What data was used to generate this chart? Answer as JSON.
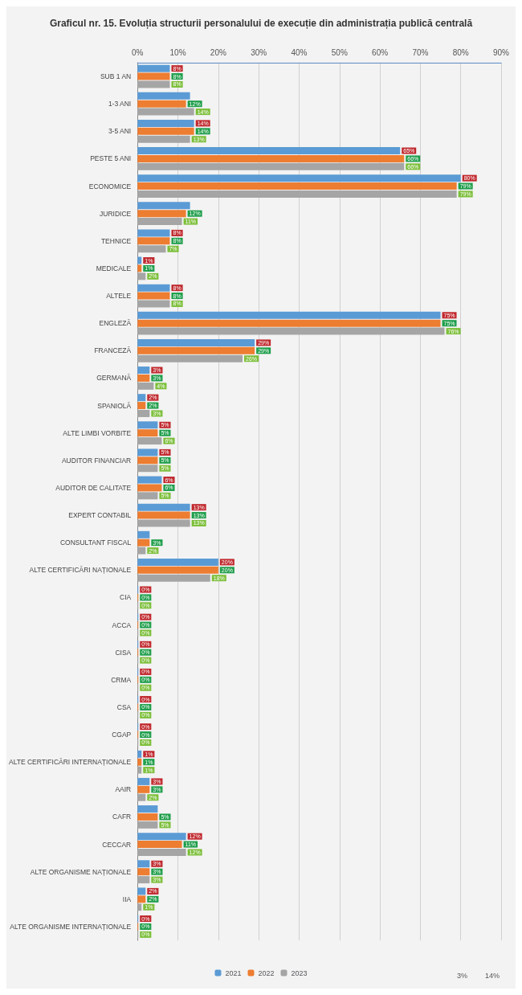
{
  "chart_data": {
    "type": "bar",
    "orientation": "horizontal",
    "title": "Graficul nr. 15. Evoluția structurii personalului de execuție din administrația publică centrală",
    "categories": [
      "SUB 1 AN",
      "1-3 ANI",
      "3-5 ANI",
      "PESTE 5 ANI",
      "ECONOMICE",
      "JURIDICE",
      "TEHNICE",
      "MEDICALE",
      "ALTELE",
      "ENGLEZĂ",
      "FRANCEZĂ",
      "GERMANĂ",
      "SPANIOLĂ",
      "ALTE LIMBI VORBITE",
      "AUDITOR FINANCIAR",
      "AUDITOR DE CALITATE",
      "EXPERT CONTABIL",
      "CONSULTANT FISCAL",
      "ALTE CERTIFICĂRI NAȚIONALE",
      "CIA",
      "ACCA",
      "CISA",
      "CRMA",
      "CSA",
      "CGAP",
      "ALTE CERTIFICĂRI INTERNAȚIONALE",
      "AAIR",
      "CAFR",
      "CECCAR",
      "ALTE ORGANISME NAȚIONALE",
      "IIA",
      "ALTE ORGANISME INTERNAȚIONALE"
    ],
    "series": [
      {
        "name": "2021",
        "color": "#5b9bd5",
        "values": [
          8,
          13,
          14,
          65,
          80,
          13,
          8,
          1,
          8,
          75,
          29,
          3,
          2,
          5,
          5,
          6,
          13,
          3,
          20,
          0,
          0,
          0,
          0,
          0,
          0,
          1,
          3,
          5,
          12,
          3,
          2,
          0
        ],
        "value_labels": [
          "8%",
          null,
          "14%",
          "65%",
          "80%",
          null,
          "8%",
          "1%",
          "8%",
          "75%",
          "29%",
          "3%",
          "2%",
          "5%",
          "5%",
          "6%",
          "13%",
          null,
          "20%",
          "0%",
          "0%",
          "0%",
          "0%",
          "0%",
          "0%",
          "1%",
          "3%",
          null,
          "12%",
          "3%",
          "2%",
          "0%"
        ]
      },
      {
        "name": "2022",
        "color": "#ed7d31",
        "values": [
          8,
          12,
          14,
          66,
          79,
          12,
          8,
          1,
          8,
          75,
          29,
          3,
          2,
          5,
          5,
          6,
          13,
          3,
          20,
          0,
          0,
          0,
          0,
          0,
          0,
          1,
          3,
          5,
          11,
          3,
          2,
          0
        ],
        "value_labels": [
          "8%",
          "12%",
          "14%",
          "66%",
          "79%",
          "12%",
          "8%",
          "1%",
          "8%",
          "75%",
          "29%",
          "3%",
          "2%",
          "5%",
          "5%",
          "6%",
          "13%",
          "3%",
          "20%",
          "0%",
          "0%",
          "0%",
          "0%",
          "0%",
          "0%",
          "1%",
          "3%",
          "5%",
          "11%",
          "3%",
          "2%",
          "0%"
        ]
      },
      {
        "name": "2023",
        "color": "#a5a5a5",
        "values": [
          8,
          14,
          13,
          66,
          79,
          11,
          7,
          2,
          8,
          76,
          26,
          4,
          3,
          6,
          5,
          5,
          13,
          2,
          18,
          0,
          0,
          0,
          0,
          0,
          0,
          1,
          2,
          5,
          12,
          3,
          1,
          0
        ],
        "value_labels": [
          "8%",
          "14%",
          "13%",
          "66%",
          "79%",
          "11%",
          "7%",
          "2%",
          "8%",
          "76%",
          "26%",
          "4%",
          "3%",
          "6%",
          "5%",
          "5%",
          "13%",
          "2%",
          "18%",
          "0%",
          "0%",
          "0%",
          "0%",
          "0%",
          "0%",
          "1%",
          "2%",
          "5%",
          "12%",
          "3%",
          "1%",
          "0%"
        ]
      }
    ],
    "xlim": [
      0,
      90
    ],
    "xticks": [
      {
        "value": 0,
        "label": "0%"
      },
      {
        "value": 10,
        "label": "10%"
      },
      {
        "value": 20,
        "label": "20%"
      },
      {
        "value": 30,
        "label": "30%"
      },
      {
        "value": 40,
        "label": "40%"
      },
      {
        "value": 50,
        "label": "50%"
      },
      {
        "value": 60,
        "label": "60%"
      },
      {
        "value": 70,
        "label": "70%"
      },
      {
        "value": 80,
        "label": "80%"
      },
      {
        "value": 90,
        "label": "90%"
      }
    ],
    "annotations": [
      "14%",
      "3%"
    ],
    "grid": "x",
    "legend": "bottom"
  }
}
